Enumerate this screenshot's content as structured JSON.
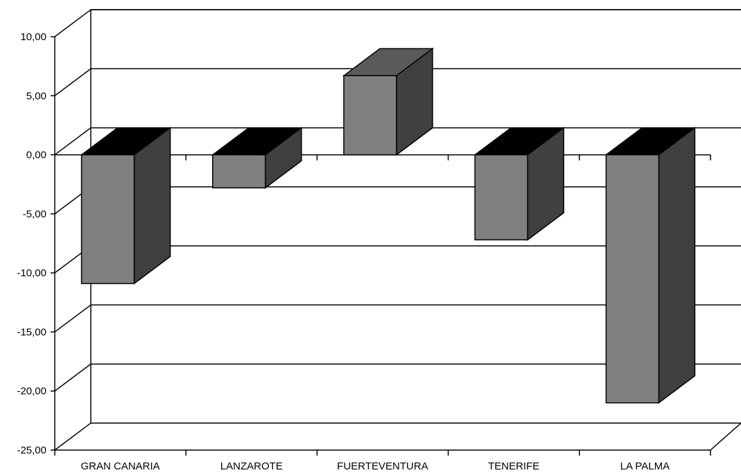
{
  "chart_data": {
    "type": "bar",
    "categories": [
      "GRAN CANARIA",
      "LANZAROTE",
      "FUERTEVENTURA",
      "TENERIFE",
      "LA PALMA"
    ],
    "values": [
      -10.9,
      -2.8,
      6.7,
      -7.2,
      -21.0
    ],
    "ylim": [
      -25,
      10
    ],
    "yticks": [
      "10,00",
      "5,00",
      "0,00",
      "-5,00",
      "-10,00",
      "-15,00",
      "-20,00",
      "-25,00"
    ],
    "ytick_values": [
      10,
      5,
      0,
      -5,
      -10,
      -15,
      -20,
      -25
    ],
    "grid": true,
    "three_d": true,
    "colors": {
      "bar_front": "#808080",
      "bar_side": "#404040",
      "bar_top": "#5a5a5a",
      "bar_top_negative": "#000000"
    }
  }
}
